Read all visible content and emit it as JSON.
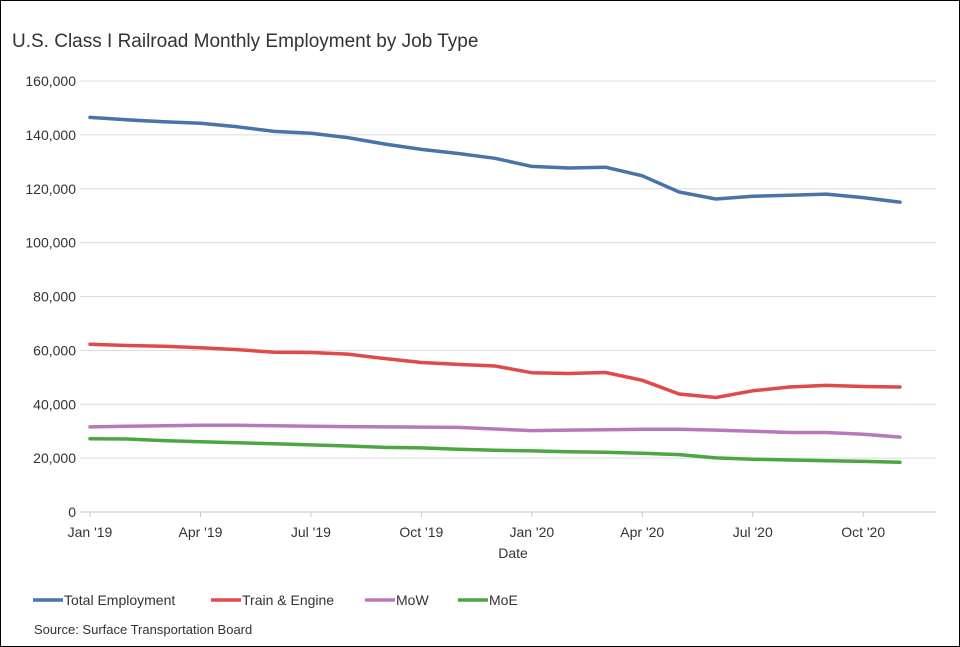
{
  "chart_data": {
    "type": "line",
    "title": "U.S. Class I Railroad Monthly Employment by Job Type",
    "xlabel": "Date",
    "ylabel": "",
    "ylim": [
      0,
      160000
    ],
    "yticks": [
      0,
      20000,
      40000,
      60000,
      80000,
      100000,
      120000,
      140000,
      160000
    ],
    "ytick_labels": [
      "0",
      "20,000",
      "40,000",
      "60,000",
      "80,000",
      "100,000",
      "120,000",
      "140,000",
      "160,000"
    ],
    "x": [
      "2019-01",
      "2019-02",
      "2019-03",
      "2019-04",
      "2019-05",
      "2019-06",
      "2019-07",
      "2019-08",
      "2019-09",
      "2019-10",
      "2019-11",
      "2019-12",
      "2020-01",
      "2020-02",
      "2020-03",
      "2020-04",
      "2020-05",
      "2020-06",
      "2020-07",
      "2020-08",
      "2020-09",
      "2020-10",
      "2020-11"
    ],
    "xticks": [
      "2019-01",
      "2019-04",
      "2019-07",
      "2019-10",
      "2020-01",
      "2020-04",
      "2020-07",
      "2020-10"
    ],
    "xtick_labels": [
      "Jan '19",
      "Apr '19",
      "Jul '19",
      "Oct '19",
      "Jan '20",
      "Apr '20",
      "Jul '20",
      "Oct '20"
    ],
    "grid": true,
    "legend_position": "bottom-left",
    "source": "Source: Surface Transportation Board",
    "series": [
      {
        "name": "Total Employment",
        "color": "#4a73a8",
        "values": [
          146500,
          145600,
          144900,
          144300,
          143000,
          141300,
          140600,
          139000,
          136600,
          134600,
          133100,
          131300,
          128300,
          127700,
          128000,
          124800,
          118800,
          116200,
          117200,
          117600,
          118000,
          116700,
          115000
        ]
      },
      {
        "name": "Train & Engine",
        "color": "#e04a4a",
        "values": [
          62300,
          61800,
          61500,
          61000,
          60300,
          59300,
          59200,
          58600,
          57000,
          55500,
          54800,
          54200,
          51700,
          51400,
          51800,
          48900,
          43800,
          42500,
          45000,
          46400,
          47000,
          46600,
          46400
        ]
      },
      {
        "name": "MoW",
        "color": "#b77ab8",
        "values": [
          31600,
          31800,
          32000,
          32200,
          32200,
          32000,
          31800,
          31700,
          31600,
          31500,
          31400,
          30800,
          30200,
          30400,
          30500,
          30700,
          30700,
          30400,
          30000,
          29500,
          29500,
          28900,
          27800
        ]
      },
      {
        "name": "MoE",
        "color": "#4ea642",
        "values": [
          27200,
          27100,
          26500,
          26100,
          25700,
          25300,
          24900,
          24500,
          24000,
          23800,
          23300,
          22900,
          22700,
          22400,
          22200,
          21800,
          21300,
          20100,
          19600,
          19300,
          19000,
          18800,
          18500
        ]
      }
    ]
  }
}
